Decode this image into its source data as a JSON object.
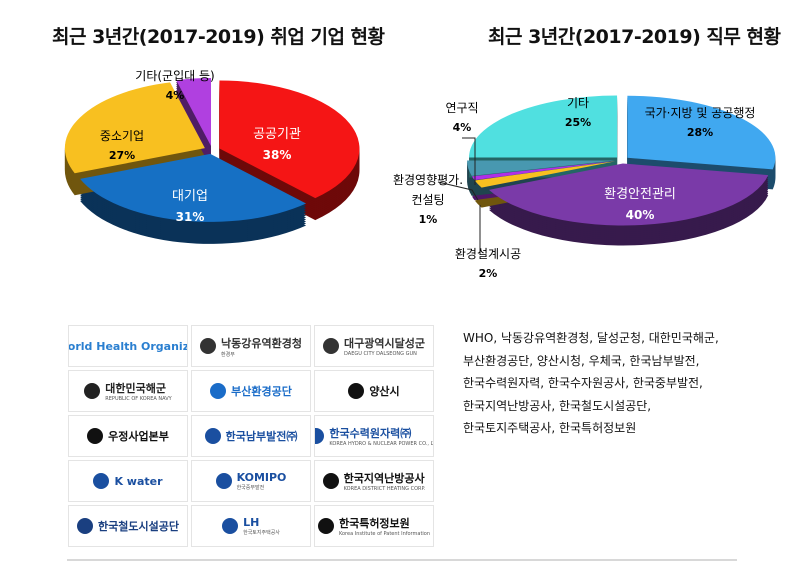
{
  "chart_data": [
    {
      "type": "pie",
      "title": "최근 3년간(2017-2019) 취업 기업 현황",
      "style": "3d-exploded",
      "slices": [
        {
          "label": "공공기관",
          "value": 38,
          "pct": "38%",
          "color": "#f51515"
        },
        {
          "label": "대기업",
          "value": 31,
          "pct": "31%",
          "color": "#1670c4"
        },
        {
          "label": "중소기업",
          "value": 27,
          "pct": "27%",
          "color": "#f8c020"
        },
        {
          "label": "기타(군입대 등)",
          "value": 4,
          "pct": "4%",
          "color": "#b040e0"
        }
      ]
    },
    {
      "type": "pie",
      "title": "최근 3년간(2017-2019) 직무 현황",
      "style": "3d-exploded",
      "slices": [
        {
          "label": "국가·지방 및 공공행정",
          "value": 28,
          "pct": "28%",
          "color": "#40a8f0"
        },
        {
          "label": "환경안전관리",
          "value": 40,
          "pct": "40%",
          "color": "#7a3aa8"
        },
        {
          "label": "환경설계시공",
          "value": 2,
          "pct": "2%",
          "color": "#f8c020"
        },
        {
          "label": "환경영향평가·컨설팅",
          "label_lines": [
            "환경영향평가.",
            "컨설팅"
          ],
          "value": 1,
          "pct": "1%",
          "color": "#b030e8"
        },
        {
          "label": "연구직",
          "value": 4,
          "pct": "4%",
          "color": "#4898b0"
        },
        {
          "label": "기타",
          "value": 25,
          "pct": "25%",
          "color": "#50e0e0"
        }
      ]
    }
  ],
  "logos": [
    {
      "name": "World Health Organization",
      "color": "#2a7fd0"
    },
    {
      "name": "낙동강유역환경청",
      "sub": "환경부",
      "color": "#333333"
    },
    {
      "name": "대구광역시달성군",
      "sub": "DAEGU CITY DALSEONG GUN",
      "color": "#333333"
    },
    {
      "name": "대한민국해군",
      "sub": "REPUBLIC OF KOREA NAVY",
      "color": "#222222"
    },
    {
      "name": "부산환경공단",
      "color": "#1a6cc8"
    },
    {
      "name": "양산시",
      "color": "#111111"
    },
    {
      "name": "우정사업본부",
      "color": "#111111"
    },
    {
      "name": "한국남부발전㈜",
      "color": "#1a4fa0"
    },
    {
      "name": "한국수력원자력㈜",
      "sub": "KOREA HYDRO & NUCLEAR POWER CO., LTD",
      "color": "#1a4fa0"
    },
    {
      "name": "K water",
      "color": "#1a4fa0"
    },
    {
      "name": "KOMIPO",
      "sub": "한국중부발전",
      "color": "#1a4fa0"
    },
    {
      "name": "한국지역난방공사",
      "sub": "KOREA DISTRICT HEATING CORP.",
      "color": "#111111"
    },
    {
      "name": "한국철도시설공단",
      "color": "#1a3f80"
    },
    {
      "name": "LH",
      "sub": "한국토지주택공사",
      "color": "#1a4fa0"
    },
    {
      "name": "한국특허정보원",
      "sub": "Korea Institute of Patent Information",
      "color": "#111111"
    }
  ],
  "org_list": [
    "WHO, 낙동강유역환경청, 달성군청, 대한민국해군,",
    "부산환경공단, 양산시청, 우체국, 한국남부발전,",
    "한국수력원자력, 한국수자원공사, 한국중부발전,",
    "한국지역난방공사, 한국철도시설공단,",
    "한국토지주택공사, 한국특허정보원"
  ]
}
